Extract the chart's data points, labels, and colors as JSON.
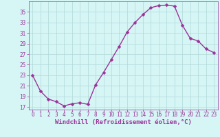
{
  "x": [
    0,
    1,
    2,
    3,
    4,
    5,
    6,
    7,
    8,
    9,
    10,
    11,
    12,
    13,
    14,
    15,
    16,
    17,
    18,
    19,
    20,
    21,
    22,
    23
  ],
  "y": [
    23.0,
    20.0,
    18.5,
    18.0,
    17.2,
    17.6,
    17.8,
    17.5,
    21.2,
    23.5,
    26.0,
    28.5,
    31.2,
    33.0,
    34.5,
    35.8,
    36.2,
    36.3,
    36.1,
    32.5,
    30.0,
    29.5,
    28.0,
    27.3
  ],
  "line_color": "#993399",
  "marker_color": "#993399",
  "bg_color": "#d6f5f5",
  "grid_color": "#b0d8d8",
  "xlabel": "Windchill (Refroidissement éolien,°C)",
  "xlim": [
    -0.5,
    23.5
  ],
  "ylim": [
    16.5,
    37.0
  ],
  "yticks": [
    17,
    19,
    21,
    23,
    25,
    27,
    29,
    31,
    33,
    35
  ],
  "xticks": [
    0,
    1,
    2,
    3,
    4,
    5,
    6,
    7,
    8,
    9,
    10,
    11,
    12,
    13,
    14,
    15,
    16,
    17,
    18,
    19,
    20,
    21,
    22,
    23
  ],
  "tick_color": "#993399",
  "label_fontsize": 6.5,
  "tick_fontsize": 5.5,
  "marker_size": 2.5,
  "line_width": 1.0
}
